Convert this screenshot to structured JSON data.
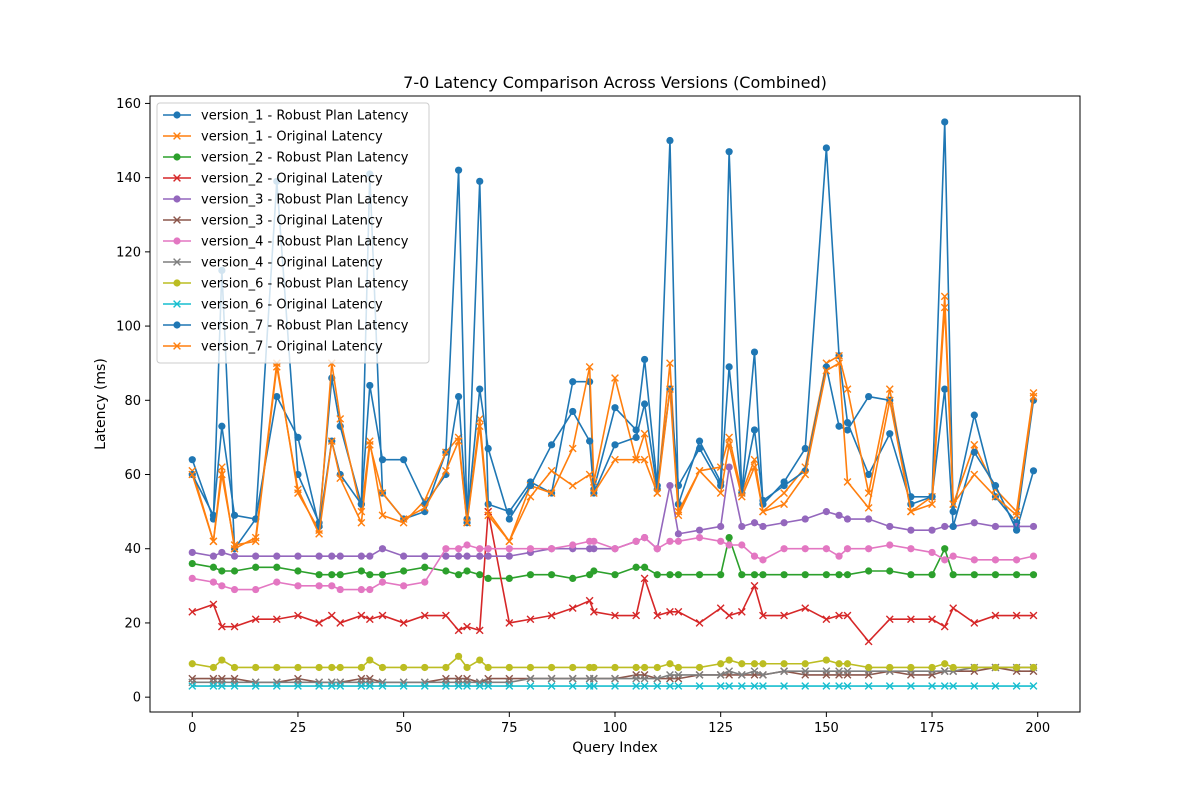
{
  "chart_data": {
    "type": "line",
    "title": "7-0 Latency Comparison Across Versions (Combined)",
    "xlabel": "Query Index",
    "ylabel": "Latency (ms)",
    "xlim": [
      -10,
      210
    ],
    "ylim": [
      -4,
      162
    ],
    "xticks": [
      0,
      25,
      50,
      75,
      100,
      125,
      150,
      175,
      200
    ],
    "yticks": [
      0,
      20,
      40,
      60,
      80,
      100,
      120,
      140,
      160
    ],
    "grid": false,
    "legend_position": "upper-left",
    "x": [
      0,
      5,
      7,
      10,
      15,
      20,
      25,
      30,
      33,
      35,
      40,
      42,
      45,
      50,
      55,
      60,
      63,
      65,
      68,
      70,
      75,
      80,
      85,
      90,
      94,
      95,
      100,
      105,
      107,
      110,
      113,
      115,
      120,
      125,
      127,
      130,
      133,
      135,
      140,
      145,
      150,
      153,
      155,
      160,
      165,
      170,
      175,
      178,
      180,
      185,
      190,
      195,
      199
    ],
    "series": [
      {
        "name": "version_1 - Robust Plan Latency",
        "color": "#1f77b4",
        "marker": "circle",
        "values": [
          64,
          48,
          115,
          40,
          48,
          139,
          60,
          47,
          86,
          73,
          52,
          141,
          55,
          48,
          50,
          66,
          142,
          47,
          139,
          52,
          50,
          58,
          55,
          85,
          85,
          56,
          78,
          72,
          91,
          57,
          150,
          52,
          69,
          58,
          147,
          55,
          93,
          52,
          58,
          67,
          148,
          92,
          74,
          60,
          71,
          52,
          54,
          155,
          50,
          76,
          54,
          47,
          80
        ]
      },
      {
        "name": "version_1 - Original Latency",
        "color": "#ff7f0e",
        "marker": "x",
        "values": [
          61,
          42,
          62,
          40,
          43,
          90,
          55,
          45,
          90,
          75,
          50,
          69,
          49,
          47,
          53,
          66,
          70,
          47,
          75,
          50,
          42,
          57,
          55,
          67,
          89,
          58,
          86,
          64,
          71,
          55,
          90,
          50,
          61,
          62,
          70,
          55,
          64,
          50,
          55,
          62,
          90,
          92,
          83,
          55,
          83,
          50,
          54,
          108,
          52,
          68,
          56,
          50,
          82
        ]
      },
      {
        "name": "version_2 - Robust Plan Latency",
        "color": "#2ca02c",
        "marker": "circle",
        "values": [
          36,
          35,
          34,
          34,
          35,
          35,
          34,
          33,
          33,
          33,
          34,
          33,
          33,
          34,
          35,
          34,
          33,
          34,
          33,
          32,
          32,
          33,
          33,
          32,
          33,
          34,
          33,
          35,
          35,
          33,
          33,
          33,
          33,
          33,
          43,
          33,
          33,
          33,
          33,
          33,
          33,
          33,
          33,
          34,
          34,
          33,
          33,
          40,
          33,
          33,
          33,
          33,
          33
        ]
      },
      {
        "name": "version_2 - Original Latency",
        "color": "#d62728",
        "marker": "x",
        "values": [
          23,
          25,
          19,
          19,
          21,
          21,
          22,
          20,
          22,
          20,
          22,
          21,
          22,
          20,
          22,
          22,
          18,
          19,
          18,
          50,
          20,
          21,
          22,
          24,
          26,
          23,
          22,
          22,
          32,
          22,
          23,
          23,
          20,
          24,
          22,
          23,
          30,
          22,
          22,
          24,
          21,
          22,
          22,
          15,
          21,
          21,
          21,
          19,
          24,
          20,
          22,
          22,
          22
        ]
      },
      {
        "name": "version_3 - Robust Plan Latency",
        "color": "#9467bd",
        "marker": "circle",
        "values": [
          39,
          38,
          39,
          38,
          38,
          38,
          38,
          38,
          38,
          38,
          38,
          38,
          40,
          38,
          38,
          38,
          38,
          38,
          38,
          38,
          38,
          39,
          40,
          40,
          40,
          40,
          40,
          42,
          43,
          40,
          57,
          44,
          45,
          46,
          62,
          46,
          47,
          46,
          47,
          48,
          50,
          49,
          48,
          48,
          46,
          45,
          45,
          46,
          46,
          47,
          46,
          46,
          46
        ]
      },
      {
        "name": "version_3 - Original Latency",
        "color": "#8c564b",
        "marker": "x",
        "values": [
          5,
          5,
          5,
          5,
          4,
          4,
          5,
          4,
          4,
          4,
          5,
          5,
          4,
          4,
          4,
          5,
          5,
          5,
          4,
          5,
          5,
          5,
          5,
          5,
          5,
          5,
          5,
          6,
          6,
          5,
          5,
          5,
          6,
          6,
          6,
          6,
          6,
          6,
          7,
          6,
          6,
          6,
          6,
          6,
          7,
          6,
          6,
          7,
          7,
          7,
          8,
          7,
          7
        ]
      },
      {
        "name": "version_4 - Robust Plan Latency",
        "color": "#e377c2",
        "marker": "circle",
        "values": [
          32,
          31,
          30,
          29,
          29,
          31,
          30,
          30,
          30,
          29,
          29,
          29,
          31,
          30,
          31,
          40,
          40,
          41,
          40,
          40,
          40,
          40,
          40,
          41,
          42,
          42,
          40,
          42,
          43,
          40,
          42,
          42,
          43,
          42,
          41,
          41,
          38,
          37,
          40,
          40,
          40,
          38,
          40,
          40,
          41,
          40,
          39,
          37,
          38,
          37,
          37,
          37,
          38
        ]
      },
      {
        "name": "version_4 - Original Latency",
        "color": "#7f7f7f",
        "marker": "x",
        "values": [
          4,
          4,
          4,
          4,
          4,
          4,
          4,
          4,
          4,
          4,
          4,
          4,
          4,
          4,
          4,
          4,
          4,
          4,
          4,
          4,
          4,
          5,
          5,
          5,
          5,
          5,
          5,
          5,
          5,
          5,
          6,
          6,
          6,
          6,
          7,
          6,
          7,
          6,
          7,
          7,
          7,
          7,
          7,
          7,
          7,
          7,
          7,
          7,
          7,
          8,
          8,
          8,
          8
        ]
      },
      {
        "name": "version_6 - Robust Plan Latency",
        "color": "#bcbd22",
        "marker": "circle",
        "values": [
          9,
          8,
          10,
          8,
          8,
          8,
          8,
          8,
          8,
          8,
          8,
          10,
          8,
          8,
          8,
          8,
          11,
          8,
          10,
          8,
          8,
          8,
          8,
          8,
          8,
          8,
          8,
          8,
          8,
          8,
          9,
          8,
          8,
          9,
          10,
          9,
          9,
          9,
          9,
          9,
          10,
          9,
          9,
          8,
          8,
          8,
          8,
          9,
          8,
          8,
          8,
          8,
          8
        ]
      },
      {
        "name": "version_6 - Original Latency",
        "color": "#17becf",
        "marker": "x",
        "values": [
          3,
          3,
          3,
          3,
          3,
          3,
          3,
          3,
          3,
          3,
          3,
          3,
          3,
          3,
          3,
          3,
          3,
          3,
          3,
          3,
          3,
          3,
          3,
          3,
          3,
          3,
          3,
          3,
          3,
          3,
          3,
          3,
          3,
          3,
          3,
          3,
          3,
          3,
          3,
          3,
          3,
          3,
          3,
          3,
          3,
          3,
          3,
          3,
          3,
          3,
          3,
          3,
          3
        ]
      },
      {
        "name": "version_7 - Robust Plan Latency",
        "color": "#1f77b4",
        "marker": "circle",
        "values": [
          60,
          49,
          73,
          49,
          48,
          81,
          70,
          46,
          69,
          60,
          52,
          84,
          64,
          64,
          52,
          60,
          81,
          48,
          83,
          67,
          48,
          57,
          68,
          77,
          69,
          55,
          68,
          70,
          79,
          56,
          83,
          57,
          67,
          57,
          89,
          55,
          72,
          53,
          57,
          61,
          89,
          73,
          72,
          81,
          80,
          54,
          54,
          83,
          46,
          66,
          57,
          45,
          61
        ]
      },
      {
        "name": "version_7 - Original Latency",
        "color": "#ff7f0e",
        "marker": "x",
        "values": [
          60,
          42,
          60,
          41,
          42,
          89,
          56,
          44,
          69,
          59,
          47,
          68,
          55,
          48,
          51,
          61,
          69,
          47,
          73,
          49,
          42,
          54,
          61,
          57,
          60,
          55,
          64,
          64,
          64,
          55,
          83,
          49,
          61,
          55,
          68,
          54,
          62,
          50,
          52,
          60,
          88,
          90,
          58,
          51,
          80,
          50,
          52,
          105,
          52,
          60,
          54,
          49,
          81
        ]
      }
    ]
  }
}
